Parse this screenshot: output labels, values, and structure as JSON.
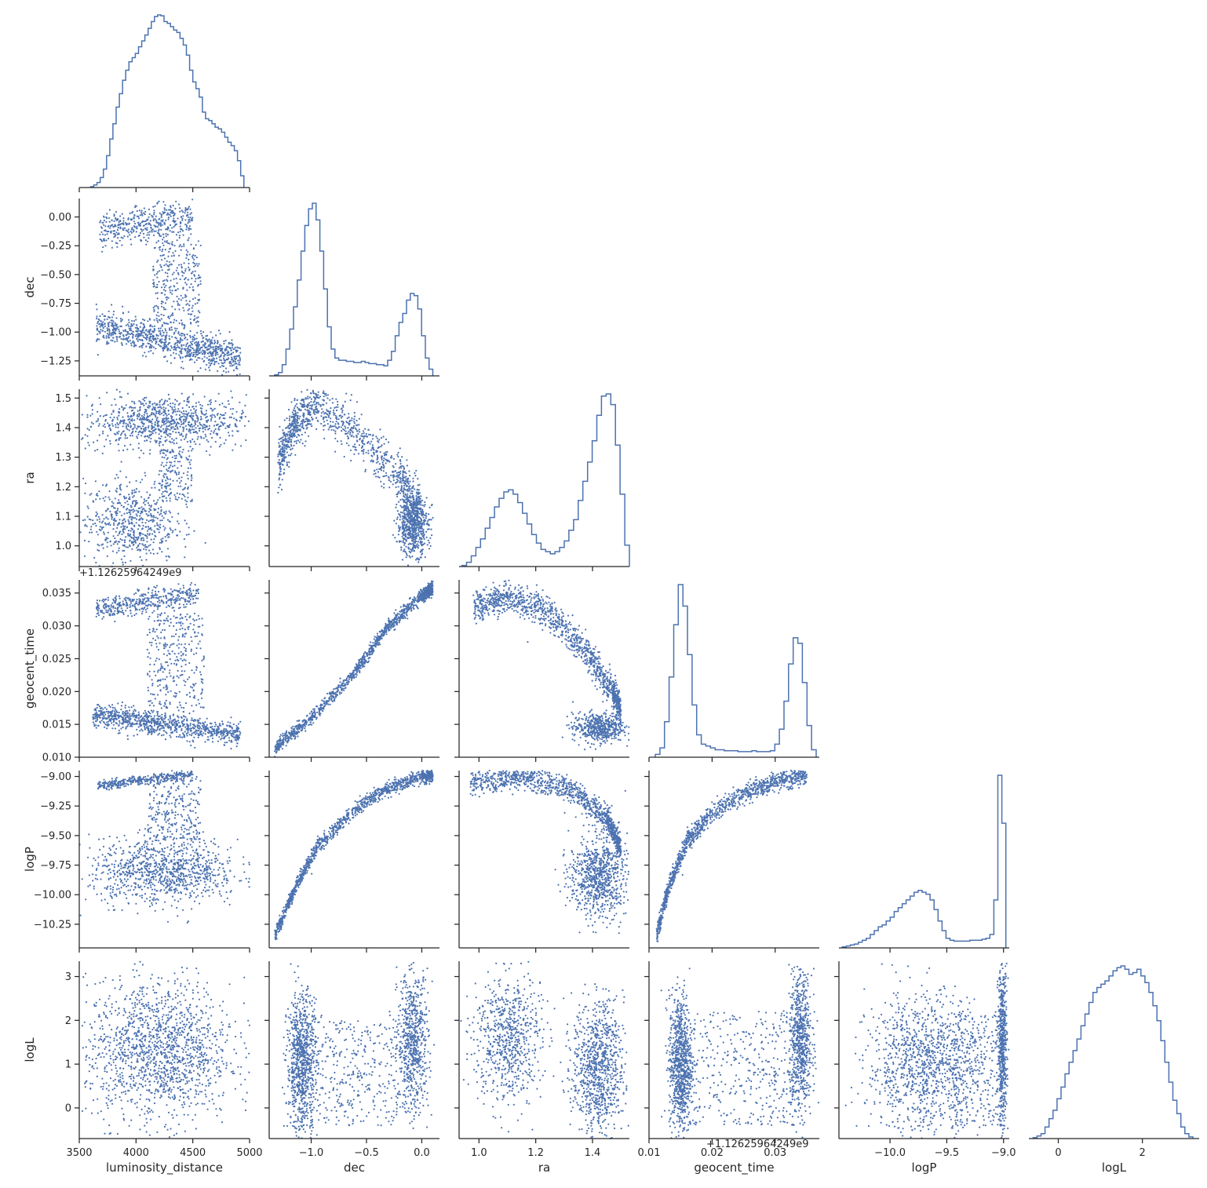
{
  "chart_data": {
    "type": "pairplot-corner",
    "variables": [
      "luminosity_distance",
      "dec",
      "ra",
      "geocent_time",
      "logP",
      "logL"
    ],
    "axis_labels": [
      "luminosity_distance",
      "dec",
      "ra",
      "geocent_time",
      "logP",
      "logL"
    ],
    "offset_text": "+1.12625964249e9",
    "offset_text_bottom": "+1.12625964249e9",
    "ticks": {
      "luminosity_distance": {
        "values": [
          3500,
          4000,
          4500,
          5000
        ],
        "labels": [
          "3500",
          "4000",
          "4500",
          "5000"
        ],
        "range": [
          3500,
          5000
        ]
      },
      "dec": {
        "values": [
          -1.25,
          -1.0,
          -0.75,
          -0.5,
          -0.25,
          0.0
        ],
        "labels": [
          "−1.25",
          "−1.00",
          "−0.75",
          "−0.50",
          "−0.25",
          "0.00"
        ],
        "xvalues": [
          -1.0,
          -0.5,
          0.0
        ],
        "xlabels": [
          "−1.0",
          "−0.5",
          "0.0"
        ],
        "range": [
          -1.38,
          0.16
        ]
      },
      "ra": {
        "values": [
          1.0,
          1.1,
          1.2,
          1.3,
          1.4,
          1.5
        ],
        "labels": [
          "1.0",
          "1.1",
          "1.2",
          "1.3",
          "1.4",
          "1.5"
        ],
        "xvalues": [
          1.0,
          1.2,
          1.4
        ],
        "xlabels": [
          "1.0",
          "1.2",
          "1.4"
        ],
        "range": [
          0.93,
          1.53
        ]
      },
      "geocent_time": {
        "values": [
          0.01,
          0.015,
          0.02,
          0.025,
          0.03,
          0.035
        ],
        "labels": [
          "0.010",
          "0.015",
          "0.020",
          "0.025",
          "0.030",
          "0.035"
        ],
        "xvalues": [
          0.01,
          0.02,
          0.03
        ],
        "xlabels": [
          "0.01",
          "0.02",
          "0.03"
        ],
        "range": [
          0.01,
          0.037
        ]
      },
      "logP": {
        "values": [
          -10.25,
          -10.0,
          -9.75,
          -9.5,
          -9.25,
          -9.0
        ],
        "labels": [
          "−10.25",
          "−10.00",
          "−9.75",
          "−9.50",
          "−9.25",
          "−9.00"
        ],
        "xvalues": [
          -10.0,
          -9.5,
          -9.0
        ],
        "xlabels": [
          "−10.0",
          "−9.5",
          "−9.0"
        ],
        "range": [
          -10.45,
          -8.95
        ]
      },
      "logL": {
        "values": [
          0,
          1,
          2,
          3
        ],
        "labels": [
          "0",
          "1",
          "2",
          "3"
        ],
        "xvalues": [
          0,
          2
        ],
        "xlabels": [
          "0",
          "2"
        ],
        "range": [
          -0.7,
          3.35
        ]
      }
    },
    "histograms": {
      "luminosity_distance": {
        "x_start": 3600,
        "x_end": 4950,
        "counts": [
          1,
          3,
          6,
          12,
          22,
          38,
          58,
          76,
          96,
          112,
          128,
          140,
          150,
          155,
          160,
          168,
          175,
          182,
          190,
          198,
          204,
          206,
          205,
          198,
          196,
          192,
          188,
          185,
          178,
          170,
          158,
          140,
          126,
          118,
          108,
          90,
          82,
          80,
          76,
          72,
          70,
          66,
          60,
          54,
          50,
          44,
          32,
          14
        ]
      },
      "dec": {
        "x_start": -1.33,
        "x_end": 0.1,
        "counts": [
          1,
          3,
          10,
          24,
          42,
          62,
          86,
          112,
          135,
          150,
          155,
          140,
          112,
          78,
          44,
          24,
          16,
          14,
          14,
          13,
          13,
          12,
          12,
          13,
          12,
          11,
          11,
          10,
          10,
          9,
          14,
          22,
          36,
          48,
          56,
          68,
          74,
          72,
          60,
          36,
          16,
          6
        ]
      },
      "ra": {
        "x_start": 0.94,
        "x_end": 1.53,
        "counts": [
          1,
          4,
          10,
          18,
          26,
          36,
          46,
          56,
          64,
          70,
          72,
          68,
          60,
          50,
          40,
          30,
          22,
          16,
          14,
          12,
          14,
          18,
          24,
          34,
          44,
          62,
          80,
          98,
          118,
          142,
          160,
          162,
          152,
          114,
          68,
          20
        ]
      },
      "geocent_time": {
        "x_start": 0.011,
        "x_end": 0.0365,
        "counts": [
          3,
          10,
          38,
          86,
          142,
          185,
          162,
          110,
          56,
          24,
          14,
          12,
          10,
          8,
          8,
          7,
          7,
          7,
          6,
          6,
          6,
          7,
          6,
          6,
          6,
          7,
          14,
          30,
          60,
          100,
          128,
          122,
          80,
          34,
          8
        ]
      },
      "logP": {
        "x_start": -10.42,
        "x_end": -8.98,
        "counts": [
          1,
          2,
          3,
          4,
          6,
          8,
          10,
          14,
          18,
          22,
          24,
          28,
          32,
          38,
          42,
          46,
          50,
          54,
          58,
          60,
          58,
          56,
          50,
          40,
          28,
          18,
          10,
          8,
          7,
          7,
          7,
          7,
          8,
          8,
          8,
          9,
          10,
          14,
          50,
          180,
          130
        ]
      },
      "logL": {
        "x_start": -0.6,
        "x_end": 3.2,
        "counts": [
          1,
          3,
          6,
          14,
          24,
          34,
          48,
          62,
          78,
          92,
          106,
          120,
          136,
          150,
          164,
          176,
          182,
          186,
          190,
          196,
          202,
          206,
          208,
          204,
          198,
          200,
          204,
          196,
          188,
          176,
          160,
          142,
          118,
          92,
          68,
          46,
          30,
          14,
          6,
          2
        ]
      }
    },
    "scatter_clusters": [
      {
        "pair": [
          "luminosity_distance",
          "dec"
        ],
        "clusters": [
          {
            "n": 900,
            "kind": "band",
            "x0": 3650,
            "y0": -0.95,
            "x1": 4920,
            "y1": -1.22,
            "w": 0.07
          },
          {
            "n": 420,
            "kind": "band",
            "x0": 3680,
            "y0": -0.12,
            "x1": 4500,
            "y1": -0.02,
            "w": 0.08
          },
          {
            "n": 300,
            "kind": "box",
            "x": [
              4150,
              4570
            ],
            "y": [
              -0.95,
              -0.2
            ]
          }
        ]
      },
      {
        "pair": [
          "luminosity_distance",
          "ra"
        ],
        "clusters": [
          {
            "n": 900,
            "kind": "blob",
            "cx": 4250,
            "cy": 1.42,
            "sx": 360,
            "sy": 0.045
          },
          {
            "n": 600,
            "kind": "blob",
            "cx": 3950,
            "cy": 1.08,
            "sx": 200,
            "sy": 0.07
          },
          {
            "n": 160,
            "kind": "box",
            "x": [
              4200,
              4500
            ],
            "y": [
              1.15,
              1.33
            ]
          }
        ]
      },
      {
        "pair": [
          "luminosity_distance",
          "geocent_time"
        ],
        "clusters": [
          {
            "n": 900,
            "kind": "band",
            "x0": 3620,
            "y0": 0.0165,
            "x1": 4920,
            "y1": 0.0135,
            "w": 0.0009
          },
          {
            "n": 420,
            "kind": "band",
            "x0": 3650,
            "y0": 0.0325,
            "x1": 4550,
            "y1": 0.0348,
            "w": 0.0009
          },
          {
            "n": 320,
            "kind": "box",
            "x": [
              4100,
              4600
            ],
            "y": [
              0.0175,
              0.032
            ]
          }
        ]
      },
      {
        "pair": [
          "luminosity_distance",
          "logP"
        ],
        "clusters": [
          {
            "n": 1000,
            "kind": "blob",
            "cx": 4250,
            "cy": -9.8,
            "sx": 330,
            "sy": 0.14
          },
          {
            "n": 360,
            "kind": "band",
            "x0": 3650,
            "y0": -9.08,
            "x1": 4500,
            "y1": -8.98,
            "w": 0.02
          },
          {
            "n": 250,
            "kind": "box",
            "x": [
              4100,
              4570
            ],
            "y": [
              -9.55,
              -9.0
            ]
          }
        ]
      },
      {
        "pair": [
          "luminosity_distance",
          "logL"
        ],
        "clusters": [
          {
            "n": 1500,
            "kind": "blob",
            "cx": 4200,
            "cy": 1.3,
            "sx": 320,
            "sy": 0.8
          }
        ]
      },
      {
        "pair": [
          "dec",
          "ra"
        ],
        "clusters": [
          {
            "n": 1100,
            "kind": "curve",
            "pts": [
              [
                -1.3,
                1.28
              ],
              [
                -1.15,
                1.42
              ],
              [
                -0.95,
                1.48
              ],
              [
                -0.6,
                1.38
              ],
              [
                -0.2,
                1.22
              ],
              [
                0.0,
                1.12
              ]
            ],
            "w": 0.04
          },
          {
            "n": 600,
            "kind": "blob",
            "cx": -0.08,
            "cy": 1.07,
            "sx": 0.07,
            "sy": 0.05
          }
        ]
      },
      {
        "pair": [
          "dec",
          "geocent_time"
        ],
        "clusters": [
          {
            "n": 1200,
            "kind": "curve",
            "pts": [
              [
                -1.33,
                0.0112
              ],
              [
                -1.0,
                0.016
              ],
              [
                -0.6,
                0.023
              ],
              [
                -0.3,
                0.03
              ],
              [
                0.0,
                0.0345
              ],
              [
                0.1,
                0.0358
              ]
            ],
            "w": 0.0005
          }
        ]
      },
      {
        "pair": [
          "dec",
          "logP"
        ],
        "clusters": [
          {
            "n": 1200,
            "kind": "curve",
            "pts": [
              [
                -1.33,
                -10.35
              ],
              [
                -1.15,
                -9.95
              ],
              [
                -0.95,
                -9.6
              ],
              [
                -0.6,
                -9.27
              ],
              [
                -0.3,
                -9.1
              ],
              [
                0.0,
                -9.0
              ],
              [
                0.1,
                -8.99
              ]
            ],
            "w": 0.03
          }
        ]
      },
      {
        "pair": [
          "dec",
          "logL"
        ],
        "clusters": [
          {
            "n": 900,
            "kind": "blob",
            "cx": -1.08,
            "cy": 1.0,
            "sx": 0.07,
            "sy": 0.8
          },
          {
            "n": 700,
            "kind": "blob",
            "cx": -0.08,
            "cy": 1.5,
            "sx": 0.07,
            "sy": 0.8
          },
          {
            "n": 300,
            "kind": "box",
            "x": [
              -0.9,
              -0.2
            ],
            "y": [
              -0.4,
              2.0
            ]
          }
        ]
      },
      {
        "pair": [
          "ra",
          "geocent_time"
        ],
        "clusters": [
          {
            "n": 1200,
            "kind": "curve",
            "pts": [
              [
                0.98,
                0.0328
              ],
              [
                1.1,
                0.0345
              ],
              [
                1.25,
                0.032
              ],
              [
                1.38,
                0.026
              ],
              [
                1.47,
                0.02
              ],
              [
                1.5,
                0.017
              ]
            ],
            "w": 0.0012
          },
          {
            "n": 500,
            "kind": "blob",
            "cx": 1.42,
            "cy": 0.0145,
            "sx": 0.045,
            "sy": 0.0011
          }
        ]
      },
      {
        "pair": [
          "ra",
          "logP"
        ],
        "clusters": [
          {
            "n": 1100,
            "kind": "curve",
            "pts": [
              [
                0.97,
                -9.05
              ],
              [
                1.15,
                -9.0
              ],
              [
                1.32,
                -9.1
              ],
              [
                1.45,
                -9.35
              ],
              [
                1.5,
                -9.6
              ]
            ],
            "w": 0.05
          },
          {
            "n": 800,
            "kind": "blob",
            "cx": 1.42,
            "cy": -9.85,
            "sx": 0.05,
            "sy": 0.17
          }
        ]
      },
      {
        "pair": [
          "ra",
          "logL"
        ],
        "clusters": [
          {
            "n": 700,
            "kind": "blob",
            "cx": 1.1,
            "cy": 1.6,
            "sx": 0.06,
            "sy": 0.75
          },
          {
            "n": 900,
            "kind": "blob",
            "cx": 1.42,
            "cy": 0.9,
            "sx": 0.045,
            "sy": 0.75
          }
        ]
      },
      {
        "pair": [
          "geocent_time",
          "logP"
        ],
        "clusters": [
          {
            "n": 1200,
            "kind": "curve",
            "pts": [
              [
                0.0112,
                -10.35
              ],
              [
                0.013,
                -9.95
              ],
              [
                0.016,
                -9.55
              ],
              [
                0.02,
                -9.3
              ],
              [
                0.026,
                -9.12
              ],
              [
                0.031,
                -9.03
              ],
              [
                0.035,
                -8.99
              ]
            ],
            "w": 0.04
          }
        ]
      },
      {
        "pair": [
          "geocent_time",
          "logL"
        ],
        "clusters": [
          {
            "n": 900,
            "kind": "blob",
            "cx": 0.015,
            "cy": 1.0,
            "sx": 0.0009,
            "sy": 0.8
          },
          {
            "n": 700,
            "kind": "blob",
            "cx": 0.034,
            "cy": 1.5,
            "sx": 0.0009,
            "sy": 0.8
          },
          {
            "n": 350,
            "kind": "box",
            "x": [
              0.0165,
              0.0325
            ],
            "y": [
              -0.4,
              2.2
            ]
          }
        ]
      },
      {
        "pair": [
          "logP",
          "logL"
        ],
        "clusters": [
          {
            "n": 1100,
            "kind": "blob",
            "cx": -9.7,
            "cy": 1.0,
            "sx": 0.25,
            "sy": 0.8
          },
          {
            "n": 600,
            "kind": "blob",
            "cx": -9.01,
            "cy": 1.4,
            "sx": 0.02,
            "sy": 0.9
          },
          {
            "n": 250,
            "kind": "box",
            "x": [
              -9.5,
              -9.05
            ],
            "y": [
              -0.4,
              2.2
            ]
          }
        ]
      }
    ]
  }
}
